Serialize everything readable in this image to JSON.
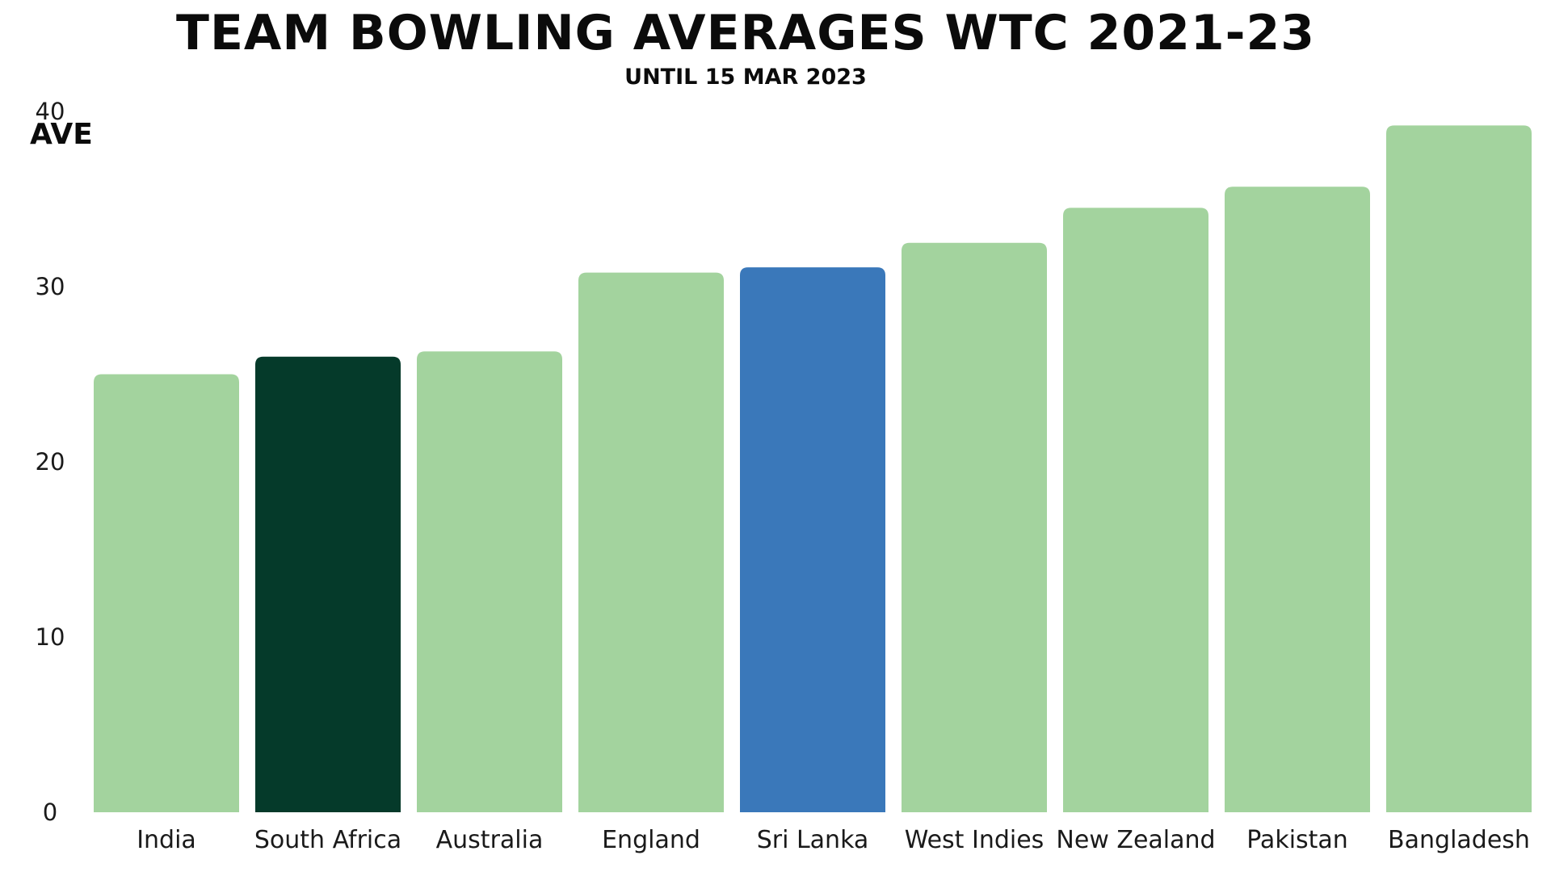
{
  "chart_data": {
    "type": "bar",
    "title": "TEAM BOWLING AVERAGES WTC 2021-23",
    "subtitle": "UNTIL 15 MAR 2023",
    "xlabel": "",
    "ylabel": "AVE",
    "ylim": [
      0,
      40
    ],
    "yticks": [
      "0",
      "10",
      "20",
      "30",
      "40"
    ],
    "grid": false,
    "legend": "none",
    "categories": [
      "India",
      "South Africa",
      "Australia",
      "England",
      "Sri Lanka",
      "West Indies",
      "New Zealand",
      "Pakistan",
      "Bangladesh"
    ],
    "values": [
      25.0,
      26.0,
      26.3,
      30.8,
      31.1,
      32.5,
      34.5,
      35.7,
      39.2
    ],
    "colors": [
      "#a3d39e",
      "#053a2a",
      "#a3d39e",
      "#a3d39e",
      "#3a78ba",
      "#a3d39e",
      "#a3d39e",
      "#a3d39e",
      "#a3d39e"
    ]
  }
}
